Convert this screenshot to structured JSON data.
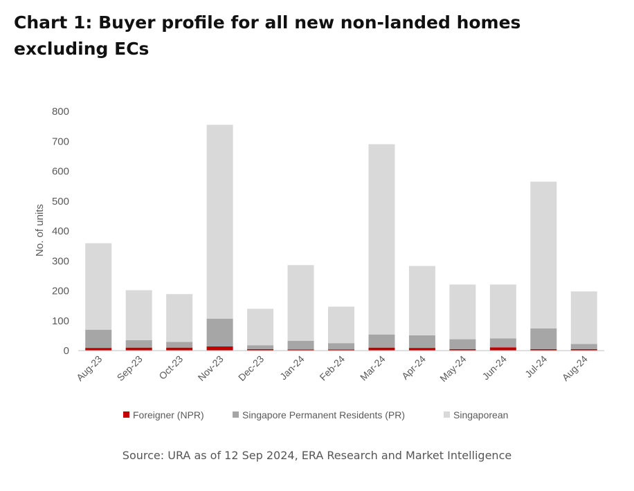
{
  "title": "Chart 1: Buyer profile for all new non-landed homes excluding ECs",
  "source": "Source: URA as of 12 Sep 2024, ERA Research and Market Intelligence",
  "chart_data": {
    "type": "bar",
    "stacked": true,
    "title": "Chart 1: Buyer profile for all new non-landed homes excluding ECs",
    "xlabel": "",
    "ylabel": "No. of units",
    "ylim": [
      0,
      800
    ],
    "yticks": [
      0,
      100,
      200,
      300,
      400,
      500,
      600,
      700,
      800
    ],
    "grid": false,
    "legend": "bottom",
    "categories": [
      "Aug-23",
      "Sep-23",
      "Oct-23",
      "Nov-23",
      "Dec-23",
      "Jan-24",
      "Feb-24",
      "Mar-24",
      "Apr-24",
      "May-24",
      "Jun-24",
      "Jul-24",
      "Aug-24"
    ],
    "series": [
      {
        "name": "Foreigner (NPR)",
        "color": "#c00000",
        "values": [
          9,
          10,
          10,
          14,
          5,
          4,
          4,
          10,
          9,
          5,
          11,
          5,
          5
        ]
      },
      {
        "name": "Singapore Permanent Residents (PR)",
        "color": "#a6a6a6",
        "values": [
          61,
          25,
          19,
          93,
          13,
          29,
          21,
          44,
          42,
          33,
          30,
          69,
          17
        ]
      },
      {
        "name": "Singaporean",
        "color": "#d9d9d9",
        "values": [
          289,
          167,
          160,
          648,
          122,
          253,
          122,
          636,
          232,
          183,
          180,
          491,
          176
        ]
      }
    ]
  }
}
